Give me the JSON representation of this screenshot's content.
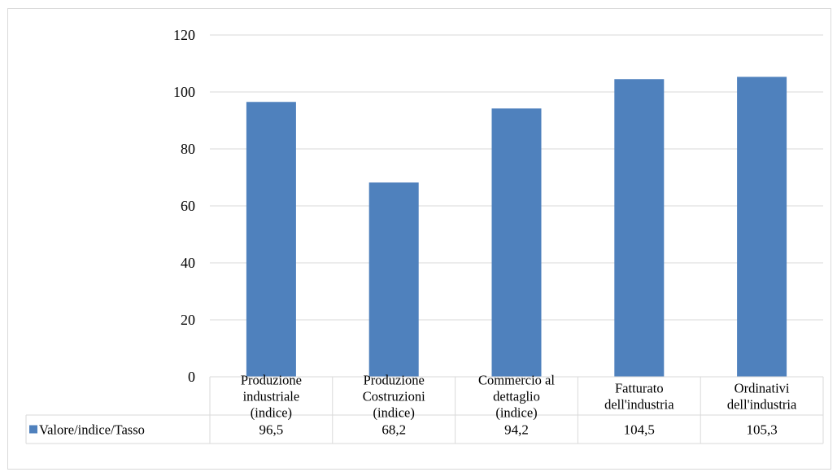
{
  "chart_data": {
    "type": "bar",
    "title": "",
    "xlabel": "",
    "ylabel": "",
    "ylim": [
      0,
      120
    ],
    "yticks": [
      "0",
      "20",
      "40",
      "60",
      "80",
      "100",
      "120"
    ],
    "grid": true,
    "legend_position": "bottom-left (data table)",
    "categories": [
      [
        "Produzione",
        "industriale",
        "(indice)"
      ],
      [
        "Produzione",
        "Costruzioni",
        "(indice)"
      ],
      [
        "Commercio al",
        "dettaglio",
        "(indice)"
      ],
      [
        "Fatturato",
        "dell'industria"
      ],
      [
        "Ordinativi",
        "dell'industria"
      ]
    ],
    "series": [
      {
        "name": "Valore/indice/Tasso",
        "values": [
          96.5,
          68.2,
          94.2,
          104.5,
          105.3
        ],
        "labels": [
          "96,5",
          "68,2",
          "94,2",
          "104,5",
          "105,3"
        ],
        "color": "#4f81bd"
      }
    ]
  }
}
